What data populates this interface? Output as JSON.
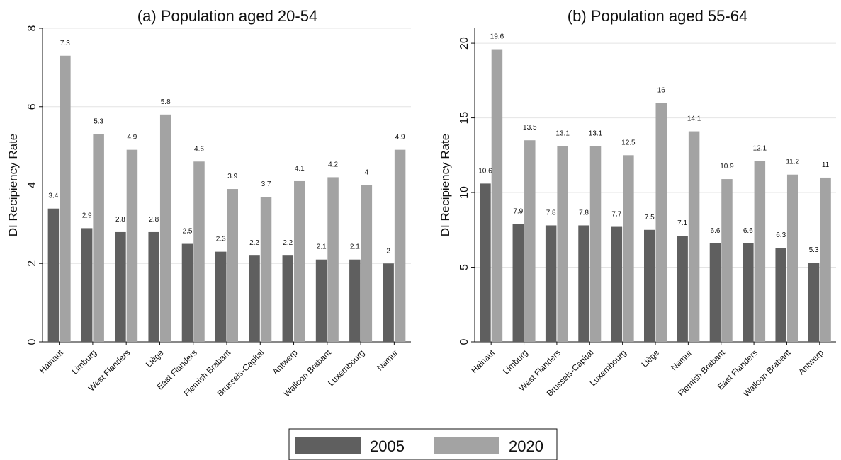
{
  "chart_data": [
    {
      "type": "bar",
      "title": "(a) Population aged 20-54",
      "ylabel": "DI Recipiency Rate",
      "xlabel": "",
      "ylim": [
        0,
        8
      ],
      "yticks": [
        0,
        2,
        4,
        6,
        8
      ],
      "grid": true,
      "categories": [
        "Hainaut",
        "Limburg",
        "West Flanders",
        "Liège",
        "East Flanders",
        "Flemish Brabant",
        "Brussels-Capital",
        "Antwerp",
        "Walloon Brabant",
        "Luxembourg",
        "Namur"
      ],
      "series": [
        {
          "name": "2005",
          "color": "#5f5f5f",
          "values": [
            3.4,
            2.9,
            2.8,
            2.8,
            2.5,
            2.3,
            2.2,
            2.2,
            2.1,
            2.1,
            2
          ]
        },
        {
          "name": "2020",
          "color": "#a3a3a3",
          "values": [
            7.3,
            5.3,
            4.9,
            5.8,
            4.6,
            3.9,
            3.7,
            4.1,
            4.2,
            4,
            4.9
          ]
        }
      ]
    },
    {
      "type": "bar",
      "title": "(b) Population aged 55-64",
      "ylabel": "DI Recipiency Rate",
      "xlabel": "",
      "ylim": [
        0,
        21
      ],
      "yticks": [
        0,
        5,
        10,
        15,
        20
      ],
      "grid": true,
      "categories": [
        "Hainaut",
        "Limburg",
        "West Flanders",
        "Brussels-Capital",
        "Luxembourg",
        "Liège",
        "Namur",
        "Flemish Brabant",
        "East Flanders",
        "Walloon Brabant",
        "Antwerp"
      ],
      "series": [
        {
          "name": "2005",
          "color": "#5f5f5f",
          "values": [
            10.6,
            7.9,
            7.8,
            7.8,
            7.7,
            7.5,
            7.1,
            6.6,
            6.6,
            6.3,
            5.3
          ]
        },
        {
          "name": "2020",
          "color": "#a3a3a3",
          "values": [
            19.6,
            13.5,
            13.1,
            13.1,
            12.5,
            16,
            14.1,
            10.9,
            12.1,
            11.2,
            11
          ]
        }
      ]
    }
  ],
  "legend": {
    "placement": "bottom-center",
    "items": [
      {
        "label": "2005",
        "color": "#5f5f5f"
      },
      {
        "label": "2020",
        "color": "#a3a3a3"
      }
    ]
  }
}
